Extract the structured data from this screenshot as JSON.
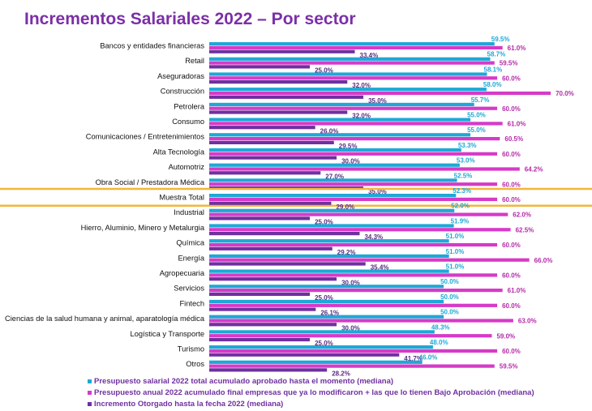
{
  "chart_data": {
    "type": "bar",
    "orientation": "horizontal",
    "title": "Incrementos Salariales 2022 – Por sector",
    "highlight": "Muestra Total",
    "categories": [
      "Bancos y entidades financieras",
      "Retail",
      "Aseguradoras",
      "Construcción",
      "Petrolera",
      "Consumo",
      "Comunicaciones / Entretenimientos",
      "Alta Tecnología",
      "Automotriz",
      "Obra Social / Prestadora Médica",
      "Muestra Total",
      "Industrial",
      "Hierro, Aluminio, Minero y Metalurgia",
      "Química",
      "Energía",
      "Agropecuaria",
      "Servicios",
      "Fintech",
      "Ciencias de la salud humana y animal, aparatología médica",
      "Logística y Transporte",
      "Turismo",
      "Otros"
    ],
    "series": [
      {
        "name": "Presupuesto salarial 2022 total acumulado aprobado hasta el momento (mediana)",
        "color": "#1fa8d6",
        "values": [
          59.5,
          58.7,
          58.1,
          58.0,
          55.7,
          55.0,
          55.0,
          53.3,
          53.0,
          52.5,
          52.3,
          52.0,
          51.9,
          51.0,
          51.0,
          51.0,
          50.0,
          50.0,
          50.0,
          48.3,
          48.0,
          46.0
        ]
      },
      {
        "name": "Presupuesto anual 2022 acumulado final empresas que ya lo modificaron + las que lo tienen Bajo Aprobación (mediana)",
        "color": "#d63ac8",
        "values": [
          61.0,
          59.5,
          60.0,
          70.0,
          60.0,
          61.0,
          60.5,
          60.0,
          64.2,
          60.0,
          60.0,
          62.0,
          62.5,
          60.0,
          66.0,
          60.0,
          61.0,
          60.0,
          63.0,
          59.0,
          60.0,
          59.5
        ]
      },
      {
        "name": "Incremento Otorgado hasta la fecha 2022 (mediana)",
        "color": "#7030a0",
        "values": [
          33.4,
          25.0,
          32.0,
          35.0,
          32.0,
          26.0,
          29.5,
          30.0,
          27.0,
          35.0,
          29.0,
          25.0,
          34.3,
          29.2,
          35.4,
          30.0,
          25.0,
          26.1,
          30.0,
          25.0,
          41.7,
          28.2
        ]
      }
    ],
    "label_suffix": "%",
    "legend_position": "bottom-left"
  }
}
